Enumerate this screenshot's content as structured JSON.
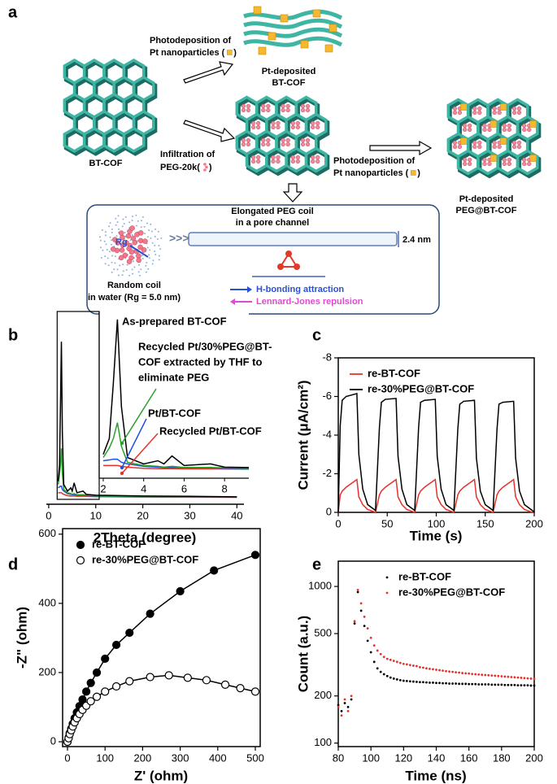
{
  "diagram": {
    "panel": "a",
    "labels": [
      "Photodeposition of",
      "Pt nanoparticles (",
      ")",
      "Pt-deposited",
      "BT-COF",
      "BT-COF",
      "Infiltration of",
      "PEG-20k(",
      ")",
      "Photodeposition of",
      "Pt nanoparticles (",
      ")",
      "Pt-deposited",
      "PEG@BT-COF",
      "Elongated PEG coil",
      "in a pore channel",
      "2.4 nm",
      "Rg",
      "Random coil",
      "in water (Rg = 5.0 nm)",
      "H-bonding attraction",
      "Lennard-Jones repulsion"
    ]
  },
  "chart_data": [
    {
      "panel": "b",
      "type": "line",
      "xlabel": "2Theta (degree)",
      "frame": false,
      "x": [
        2,
        2.3,
        2.5,
        2.7,
        2.9,
        3.2,
        4,
        4.7,
        5,
        5.4,
        6,
        7.3,
        8,
        10,
        20,
        30,
        40
      ],
      "xlim": [
        -0.5,
        41.5
      ],
      "xticks": [
        0,
        10,
        20,
        30,
        40
      ],
      "ylim": [
        -4,
        100
      ],
      "series": [
        {
          "color": "#000000",
          "values": [
            10,
            20,
            55,
            95,
            40,
            8,
            4,
            6,
            4,
            9,
            3,
            4,
            2,
            1.5,
            1,
            0.8,
            0.5
          ]
        },
        {
          "color": "#2ca02c",
          "values": [
            8,
            14,
            20,
            30,
            15,
            5,
            3,
            2.5,
            2,
            2.5,
            1.8,
            1.8,
            1.5,
            1,
            0.8,
            0.6,
            0.4
          ]
        },
        {
          "color": "#1f4fe0",
          "values": [
            6,
            6.5,
            7,
            7,
            5,
            4,
            2.5,
            2,
            1.8,
            1.8,
            1.5,
            1.5,
            1.2,
            0.9,
            0.6,
            0.5,
            0.3
          ]
        },
        {
          "color": "#e8312a",
          "values": [
            3,
            3,
            3,
            3,
            2.5,
            2,
            1.2,
            1,
            1,
            1,
            0.9,
            0.9,
            0.8,
            0.6,
            0.4,
            0.3,
            0.2
          ]
        }
      ],
      "inset": {
        "xlim": [
          1.8,
          9.2
        ],
        "xticks": [
          2,
          4,
          6,
          8
        ],
        "ylim": [
          -5,
          100
        ]
      },
      "annotations": [
        {
          "lines": [
            "As-prepared BT-COF"
          ]
        },
        {
          "lines": [
            "Recycled Pt/30%PEG@BT-",
            "COF extracted by THF to",
            "eliminate PEG"
          ]
        },
        {
          "lines": [
            "Pt/BT-COF"
          ]
        },
        {
          "lines": [
            "Recycled Pt/BT-COF"
          ]
        }
      ]
    },
    {
      "panel": "c",
      "type": "line",
      "xlabel": "Time (s)",
      "ylabel": "Current (μA/cm²)",
      "frame": true,
      "xlim": [
        0,
        200
      ],
      "xticks": [
        0,
        50,
        100,
        150,
        200
      ],
      "ylim": [
        0,
        -8
      ],
      "yticks": [
        0,
        -2,
        -4,
        -6,
        -8
      ],
      "legend": "upper left",
      "x": [
        0,
        2,
        4,
        8,
        19,
        21,
        25,
        30,
        38,
        42,
        44,
        48,
        59,
        61,
        65,
        70,
        78,
        82,
        84,
        88,
        99,
        101,
        105,
        110,
        118,
        122,
        124,
        128,
        139,
        141,
        145,
        150,
        158,
        162,
        164,
        168,
        179,
        181,
        185,
        190,
        198,
        200
      ],
      "series": [
        {
          "name": "re-BT-COF",
          "color": "#e8312a",
          "values": [
            0,
            -0.9,
            -1.1,
            -1.3,
            -1.7,
            -0.8,
            -0.4,
            -0.15,
            0,
            -0.9,
            -1.1,
            -1.3,
            -1.7,
            -0.8,
            -0.4,
            -0.15,
            0,
            -0.9,
            -1.1,
            -1.3,
            -1.7,
            -0.8,
            -0.4,
            -0.15,
            0,
            -0.9,
            -1.1,
            -1.3,
            -1.7,
            -0.8,
            -0.4,
            -0.15,
            0,
            -0.9,
            -1.1,
            -1.3,
            -1.7,
            -0.8,
            -0.4,
            -0.15,
            0,
            0
          ]
        },
        {
          "name": "re-30%PEG@BT-COF",
          "color": "#000000",
          "values": [
            0,
            -4.5,
            -5.8,
            -6.0,
            -6.15,
            -3.0,
            -1.2,
            -0.4,
            -0.1,
            -4.4,
            -5.7,
            -5.85,
            -5.9,
            -2.9,
            -1.2,
            -0.4,
            -0.1,
            -4.4,
            -5.7,
            -5.8,
            -5.85,
            -2.9,
            -1.2,
            -0.4,
            -0.1,
            -4.3,
            -5.6,
            -5.75,
            -5.8,
            -2.8,
            -1.1,
            -0.4,
            -0.1,
            -4.3,
            -5.6,
            -5.7,
            -5.75,
            -2.8,
            -1.1,
            -0.4,
            -0.1,
            0
          ]
        }
      ]
    },
    {
      "panel": "d",
      "type": "scatter",
      "connect": true,
      "xlabel": "Z' (ohm)",
      "ylabel": "-Z\" (ohm)",
      "frame": true,
      "xlim": [
        -13,
        513
      ],
      "xticks": [
        0,
        100,
        200,
        300,
        400,
        500
      ],
      "ylim": [
        -14,
        616
      ],
      "yticks": [
        0,
        200,
        400,
        600
      ],
      "legend": "upper left",
      "series": [
        {
          "name": "re-BT-COF",
          "color": "#000000",
          "marker": "filled-circle",
          "x": [
            0,
            3,
            6,
            10,
            14,
            19,
            25,
            32,
            40,
            50,
            62,
            78,
            100,
            130,
            165,
            220,
            300,
            390,
            500
          ],
          "values": [
            0,
            12,
            25,
            38,
            52,
            68,
            85,
            103,
            122,
            145,
            170,
            200,
            240,
            280,
            315,
            370,
            435,
            495,
            540
          ]
        },
        {
          "name": "re-30%PEG@BT-COF",
          "color": "#000000",
          "marker": "open-circle",
          "x": [
            0,
            3,
            6,
            10,
            14,
            19,
            25,
            32,
            40,
            50,
            62,
            78,
            100,
            130,
            165,
            220,
            270,
            320,
            370,
            420,
            460,
            500
          ],
          "values": [
            0,
            10,
            22,
            33,
            44,
            56,
            68,
            80,
            92,
            104,
            117,
            130,
            145,
            160,
            175,
            187,
            192,
            185,
            178,
            165,
            155,
            145
          ]
        }
      ]
    },
    {
      "panel": "e",
      "type": "scatter",
      "log_y": true,
      "xlabel": "Time (ns)",
      "ylabel": "Count (a.u.)",
      "frame": true,
      "xlim": [
        80,
        200
      ],
      "xticks": [
        80,
        100,
        120,
        140,
        160,
        180,
        200
      ],
      "ylim": [
        95,
        1450
      ],
      "yticks": [
        100,
        200,
        500,
        1000
      ],
      "legend": "upper center",
      "x": [
        80,
        82,
        84,
        86,
        88,
        90,
        92,
        94,
        96,
        98,
        100,
        102,
        104,
        106,
        108,
        110,
        112,
        114,
        116,
        118,
        120,
        122,
        124,
        126,
        128,
        130,
        132,
        134,
        136,
        138,
        140,
        142,
        144,
        146,
        148,
        150,
        152,
        154,
        156,
        158,
        160,
        162,
        164,
        166,
        168,
        170,
        172,
        174,
        176,
        178,
        180,
        182,
        184,
        186,
        188,
        190,
        192,
        194,
        196,
        198,
        200
      ],
      "series": [
        {
          "name": "re-BT-COF",
          "color": "#000000",
          "marker": "dot",
          "values": [
            175,
            160,
            180,
            170,
            190,
            580,
            920,
            700,
            560,
            450,
            380,
            330,
            300,
            285,
            275,
            268,
            262,
            258,
            255,
            252,
            250,
            249,
            248,
            247,
            246,
            245,
            245,
            244,
            243,
            243,
            242,
            242,
            241,
            241,
            240,
            240,
            240,
            239,
            239,
            239,
            238,
            238,
            238,
            237,
            237,
            237,
            237,
            236,
            236,
            236,
            236,
            235,
            235,
            235,
            235,
            234,
            234,
            234,
            234,
            233,
            233
          ]
        },
        {
          "name": "re-30%PEG@BT-COF",
          "color": "#e8312a",
          "marker": "dot",
          "values": [
            170,
            150,
            190,
            160,
            200,
            600,
            950,
            780,
            640,
            540,
            470,
            420,
            390,
            370,
            355,
            345,
            340,
            335,
            330,
            325,
            320,
            318,
            315,
            312,
            310,
            305,
            303,
            300,
            298,
            296,
            294,
            292,
            290,
            288,
            286,
            285,
            283,
            282,
            280,
            279,
            278,
            276,
            275,
            274,
            273,
            272,
            271,
            270,
            269,
            268,
            267,
            266,
            265,
            264,
            263,
            262,
            261,
            260,
            259,
            258,
            257
          ]
        }
      ]
    }
  ]
}
